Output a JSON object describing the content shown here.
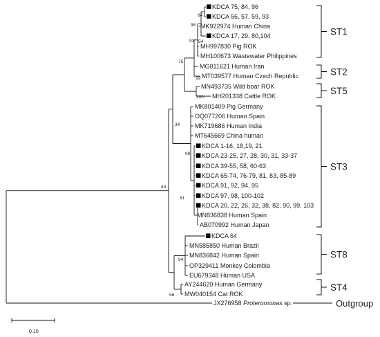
{
  "taxa": [
    {
      "id": "t1",
      "label": "KDCA 75, 84, 96",
      "marker": true
    },
    {
      "id": "t2",
      "label": "KDCA 56, 57, 59, 93",
      "marker": true
    },
    {
      "id": "t3",
      "label": "MK922974 Human China",
      "marker": false
    },
    {
      "id": "t4",
      "label": "KDCA 17, 29, 80,104",
      "marker": true
    },
    {
      "id": "t5",
      "label": "MH997830 Pig ROK",
      "marker": false
    },
    {
      "id": "t6",
      "label": "MH100673 Wastewater Philippines",
      "marker": false
    },
    {
      "id": "t7",
      "label": "MG011621 Human Iran",
      "marker": false
    },
    {
      "id": "t8",
      "label": "MT039577 Human Czech Republic",
      "marker": false
    },
    {
      "id": "t9",
      "label": "MN493735 Wild boar ROK",
      "marker": false
    },
    {
      "id": "t10",
      "label": "MH201338 Cattle ROK",
      "marker": false
    },
    {
      "id": "t11",
      "label": "MK801409 Pig Germany",
      "marker": false
    },
    {
      "id": "t12",
      "label": "OQ077206 Human Spain",
      "marker": false
    },
    {
      "id": "t13",
      "label": "MK719686 Human India",
      "marker": false
    },
    {
      "id": "t14",
      "label": "MT645669 China human",
      "marker": false
    },
    {
      "id": "t15",
      "label": "KDCA 1-16, 18,19, 21",
      "marker": true
    },
    {
      "id": "t16",
      "label": "KDCA 23-25, 27, 28, 30, 31, 33-37",
      "marker": true
    },
    {
      "id": "t17",
      "label": "KDCA 39-55, 58, 60-63",
      "marker": true
    },
    {
      "id": "t18",
      "label": "KDCA 65-74, 76-79, 81, 83, 85-89",
      "marker": true
    },
    {
      "id": "t19",
      "label": "KDCA 91, 92, 94, 95",
      "marker": true
    },
    {
      "id": "t20",
      "label": "KDCA 97, 98, 100-102",
      "marker": true
    },
    {
      "id": "t21",
      "label": "KDCA 20, 22, 26, 32, 38, 82, 90, 99, 103",
      "marker": true
    },
    {
      "id": "t22",
      "label": "MN836838 Human Spain",
      "marker": false
    },
    {
      "id": "t23",
      "label": "AB070992 Human Japan",
      "marker": false
    },
    {
      "id": "t24",
      "label": "KDCA 64",
      "marker": true
    },
    {
      "id": "t25",
      "label": "MN585850 Human Brazil",
      "marker": false
    },
    {
      "id": "t26",
      "label": "MN836842 Human Spain",
      "marker": false
    },
    {
      "id": "t27",
      "label": "OP329411 Monkey Colombia",
      "marker": false
    },
    {
      "id": "t28",
      "label": "EU679348 Human USA",
      "marker": false
    },
    {
      "id": "t29",
      "label": "AY244620 Human Germany",
      "marker": false
    },
    {
      "id": "t30",
      "label": "MW040154 Cat ROK",
      "marker": false
    }
  ],
  "outgroup_taxon": {
    "accession": "JX276958",
    "species": "Proteromonas",
    "suffix": " sp."
  },
  "bootstrap": [
    {
      "id": "b84",
      "value": "84"
    },
    {
      "id": "b98",
      "value": "98"
    },
    {
      "id": "b93",
      "value": "93"
    },
    {
      "id": "b54",
      "value": "54"
    },
    {
      "id": "b75",
      "value": "75"
    },
    {
      "id": "b99a",
      "value": "99"
    },
    {
      "id": "b100",
      "value": "100"
    },
    {
      "id": "b34",
      "value": "34"
    },
    {
      "id": "b99b",
      "value": "99"
    },
    {
      "id": "b81",
      "value": "81"
    },
    {
      "id": "b43",
      "value": "43"
    },
    {
      "id": "b94",
      "value": "94"
    },
    {
      "id": "b56",
      "value": "56"
    }
  ],
  "subtypes": [
    {
      "id": "st1",
      "label": "ST1"
    },
    {
      "id": "st2",
      "label": "ST2"
    },
    {
      "id": "st5",
      "label": "ST5"
    },
    {
      "id": "st3",
      "label": "ST3"
    },
    {
      "id": "st8",
      "label": "ST8"
    },
    {
      "id": "st4",
      "label": "ST4"
    },
    {
      "id": "outgroup",
      "label": "Outgroup"
    }
  ],
  "scale_bar": {
    "label": "0.10"
  }
}
